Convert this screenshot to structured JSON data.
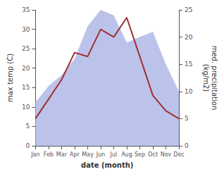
{
  "chart_data": {
    "type": "line",
    "categories": [
      "Jan",
      "Feb",
      "Mar",
      "Apr",
      "May",
      "Jun",
      "Jul",
      "Aug",
      "Sep",
      "Oct",
      "Nov",
      "Dec"
    ],
    "series": [
      {
        "type": "line",
        "color": "#a03030",
        "values": [
          7,
          12,
          17,
          24,
          23,
          30,
          28,
          33,
          23,
          13,
          9,
          7
        ]
      },
      {
        "type": "area",
        "color": "#b0b8e8",
        "axis": "y2",
        "values": [
          8,
          11,
          13,
          16,
          22,
          25,
          24,
          19,
          20,
          21,
          15,
          10
        ]
      }
    ],
    "xlabel": "date (month)",
    "ylabel": "max temp (C)",
    "y2label": "med. precipitation\n(kg/m2)",
    "ylim": [
      0,
      35
    ],
    "yticks": [
      0,
      5,
      10,
      15,
      20,
      25,
      30,
      35
    ],
    "y2lim": [
      0,
      25
    ],
    "y2ticks": [
      0,
      5,
      10,
      15,
      20,
      25
    ],
    "grid": false
  }
}
